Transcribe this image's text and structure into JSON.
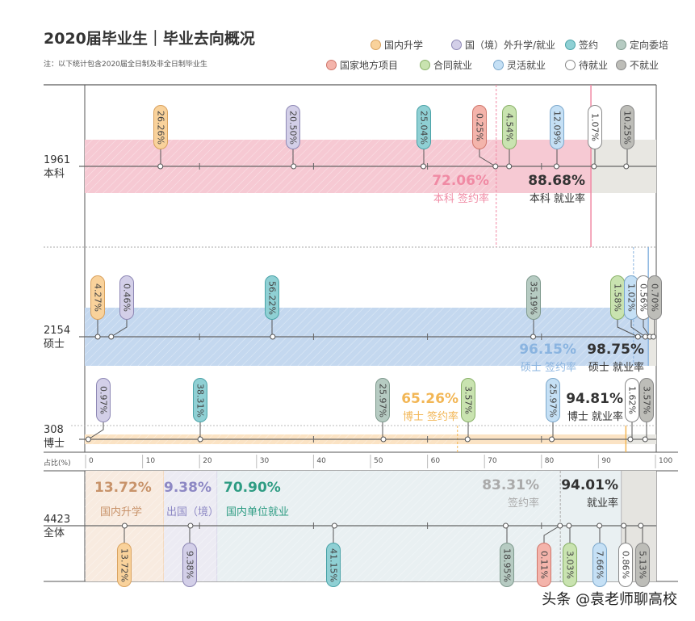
{
  "header": {
    "title": "2020届毕业生｜毕业去向概况",
    "note": "注：以下统计包含2020届全日制及非全日制毕业生"
  },
  "legend": [
    {
      "label": "国内升学",
      "color": "#f9d29b"
    },
    {
      "label": "国（境）外升学/就业",
      "color": "#d3cfe8"
    },
    {
      "label": "签约",
      "color": "#8fd0d4"
    },
    {
      "label": "定向委培",
      "color": "#b6cbc2"
    },
    {
      "label": "国家地方项目",
      "color": "#f4b4ab"
    },
    {
      "label": "合同就业",
      "color": "#c9e3b0"
    },
    {
      "label": "灵活就业",
      "color": "#c5e0f5"
    },
    {
      "label": "待就业",
      "color": "#ffffff"
    },
    {
      "label": "不就业",
      "color": "#bdbdb8"
    }
  ],
  "axis": {
    "label": "占比(%)",
    "ticks": [
      "0",
      "10",
      "20",
      "30",
      "40",
      "50",
      "60",
      "70",
      "80",
      "90",
      "100"
    ],
    "range": [
      0,
      100
    ]
  },
  "watermark": "头条 @袁老师聊高校",
  "chart_data": {
    "type": "stacked-bar-timeline",
    "rows": [
      {
        "key": "bachelor",
        "count": "1961",
        "name": "本科",
        "band_color": "#f6c9d3",
        "segments": [
          {
            "cat": 0,
            "value": 26.26,
            "label": "26.26%"
          },
          {
            "cat": 1,
            "value": 20.5,
            "label": "20.50%"
          },
          {
            "cat": 2,
            "value": 25.04,
            "label": "25.04%"
          },
          {
            "cat": 4,
            "value": 0.25,
            "label": "0.25%"
          },
          {
            "cat": 5,
            "value": 4.54,
            "label": "4.54%"
          },
          {
            "cat": 6,
            "value": 12.09,
            "label": "12.09%"
          },
          {
            "cat": 7,
            "value": 1.07,
            "label": "1.07%"
          },
          {
            "cat": 8,
            "value": 10.25,
            "label": "10.25%"
          }
        ],
        "sign_rate": 72.06,
        "sign_rate_label": "72.06%",
        "sign_text": "本科 签约率",
        "sign_color": "#f08aa4",
        "employ_rate": 88.68,
        "employ_rate_label": "88.68%",
        "employ_text": "本科 就业率"
      },
      {
        "key": "master",
        "count": "2154",
        "name": "硕士",
        "band_color": "#c4d8ef",
        "segments": [
          {
            "cat": 0,
            "value": 4.27,
            "label": "4.27%"
          },
          {
            "cat": 1,
            "value": 0.46,
            "label": "0.46%"
          },
          {
            "cat": 2,
            "value": 56.22,
            "label": "56.22%"
          },
          {
            "cat": 3,
            "value": 35.19,
            "label": "35.19%"
          },
          {
            "cat": 5,
            "value": 1.58,
            "label": "1.58%"
          },
          {
            "cat": 6,
            "value": 1.02,
            "label": "1.02%"
          },
          {
            "cat": 7,
            "value": 0.56,
            "label": "0.56%"
          },
          {
            "cat": 8,
            "value": 0.7,
            "label": "0.70%"
          }
        ],
        "sign_rate": 96.15,
        "sign_rate_label": "96.15%",
        "sign_text": "硕士 签约率",
        "sign_color": "#8ab4e0",
        "employ_rate": 98.75,
        "employ_rate_label": "98.75%",
        "employ_text": "硕士 就业率"
      },
      {
        "key": "doctor",
        "count": "308",
        "name": "博士",
        "band_color": "#fbe3c4",
        "segments": [
          {
            "cat": 1,
            "value": 0.97,
            "label": "0.97%"
          },
          {
            "cat": 2,
            "value": 38.31,
            "label": "38.31%"
          },
          {
            "cat": 3,
            "value": 25.97,
            "label": "25.97%"
          },
          {
            "cat": 5,
            "value": 3.57,
            "label": "3.57%"
          },
          {
            "cat": 6,
            "value": 25.97,
            "label": "25.97%"
          },
          {
            "cat": 7,
            "value": 1.62,
            "label": "1.62%"
          },
          {
            "cat": 8,
            "value": 3.57,
            "label": "3.57%"
          }
        ],
        "sign_rate": 65.26,
        "sign_rate_label": "65.26%",
        "sign_text": "博士 签约率",
        "sign_color": "#f2b655",
        "employ_rate": 94.81,
        "employ_rate_label": "94.81%",
        "employ_text": "博士 就业率"
      },
      {
        "key": "all",
        "count": "4423",
        "name": "全体",
        "segments": [
          {
            "cat": 0,
            "value": 13.72,
            "label": "13.72%"
          },
          {
            "cat": 1,
            "value": 9.38,
            "label": "9.38%"
          },
          {
            "cat": 2,
            "value": 41.15,
            "label": "41.15%"
          },
          {
            "cat": 3,
            "value": 18.95,
            "label": "18.95%"
          },
          {
            "cat": 4,
            "value": 0.11,
            "label": "0.11%"
          },
          {
            "cat": 5,
            "value": 3.03,
            "label": "3.03%"
          },
          {
            "cat": 6,
            "value": 7.66,
            "label": "7.66%"
          },
          {
            "cat": 7,
            "value": 0.86,
            "label": "0.86%"
          },
          {
            "cat": 8,
            "value": 5.13,
            "label": "5.13%"
          }
        ],
        "sign_rate": 83.31,
        "sign_rate_label": "83.31%",
        "sign_text": "签约率",
        "sign_color": "#a8a8a8",
        "employ_rate": 94.01,
        "employ_rate_label": "94.01%",
        "employ_text": "就业率",
        "groups": [
          {
            "value": 13.72,
            "label": "13.72%",
            "text": "国内升学",
            "color": "#c8936a"
          },
          {
            "value": 9.38,
            "label": "9.38%",
            "text": "出国（境）",
            "color": "#8d88c4"
          },
          {
            "value": 70.9,
            "label": "70.90%",
            "text": "国内单位就业",
            "color": "#2e9c83"
          }
        ]
      }
    ]
  }
}
